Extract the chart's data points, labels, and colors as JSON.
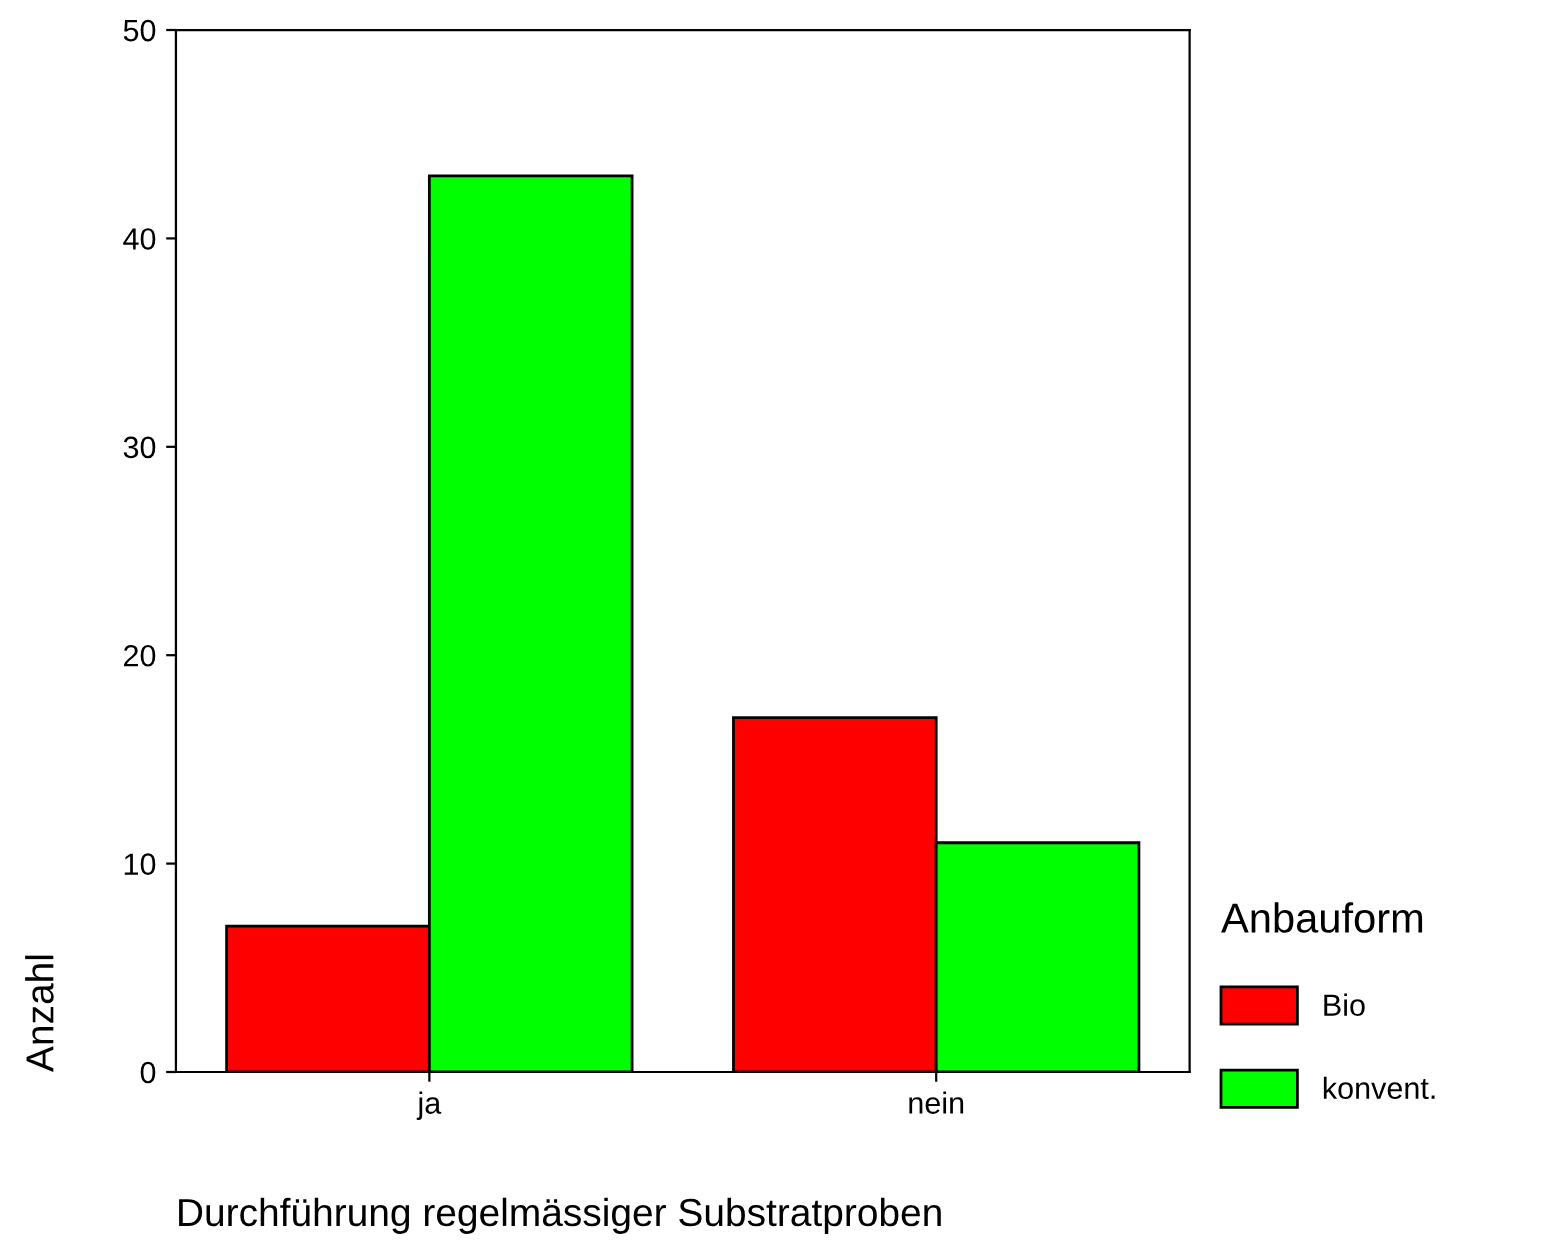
{
  "chart_data": {
    "type": "bar",
    "xlabel": "Durchführung regelmässiger Substratproben",
    "ylabel": "Anzahl",
    "legend_title": "Anbauform",
    "categories": [
      "ja",
      "nein"
    ],
    "series": [
      {
        "name": "Bio",
        "color": "#ff0000",
        "values": [
          7,
          17
        ]
      },
      {
        "name": "konvent.",
        "color": "#00ff00",
        "values": [
          43,
          11
        ]
      }
    ],
    "ylim": [
      0,
      50
    ],
    "yticks": [
      0,
      10,
      20,
      30,
      40,
      50
    ],
    "grid": false,
    "legend": "right"
  }
}
